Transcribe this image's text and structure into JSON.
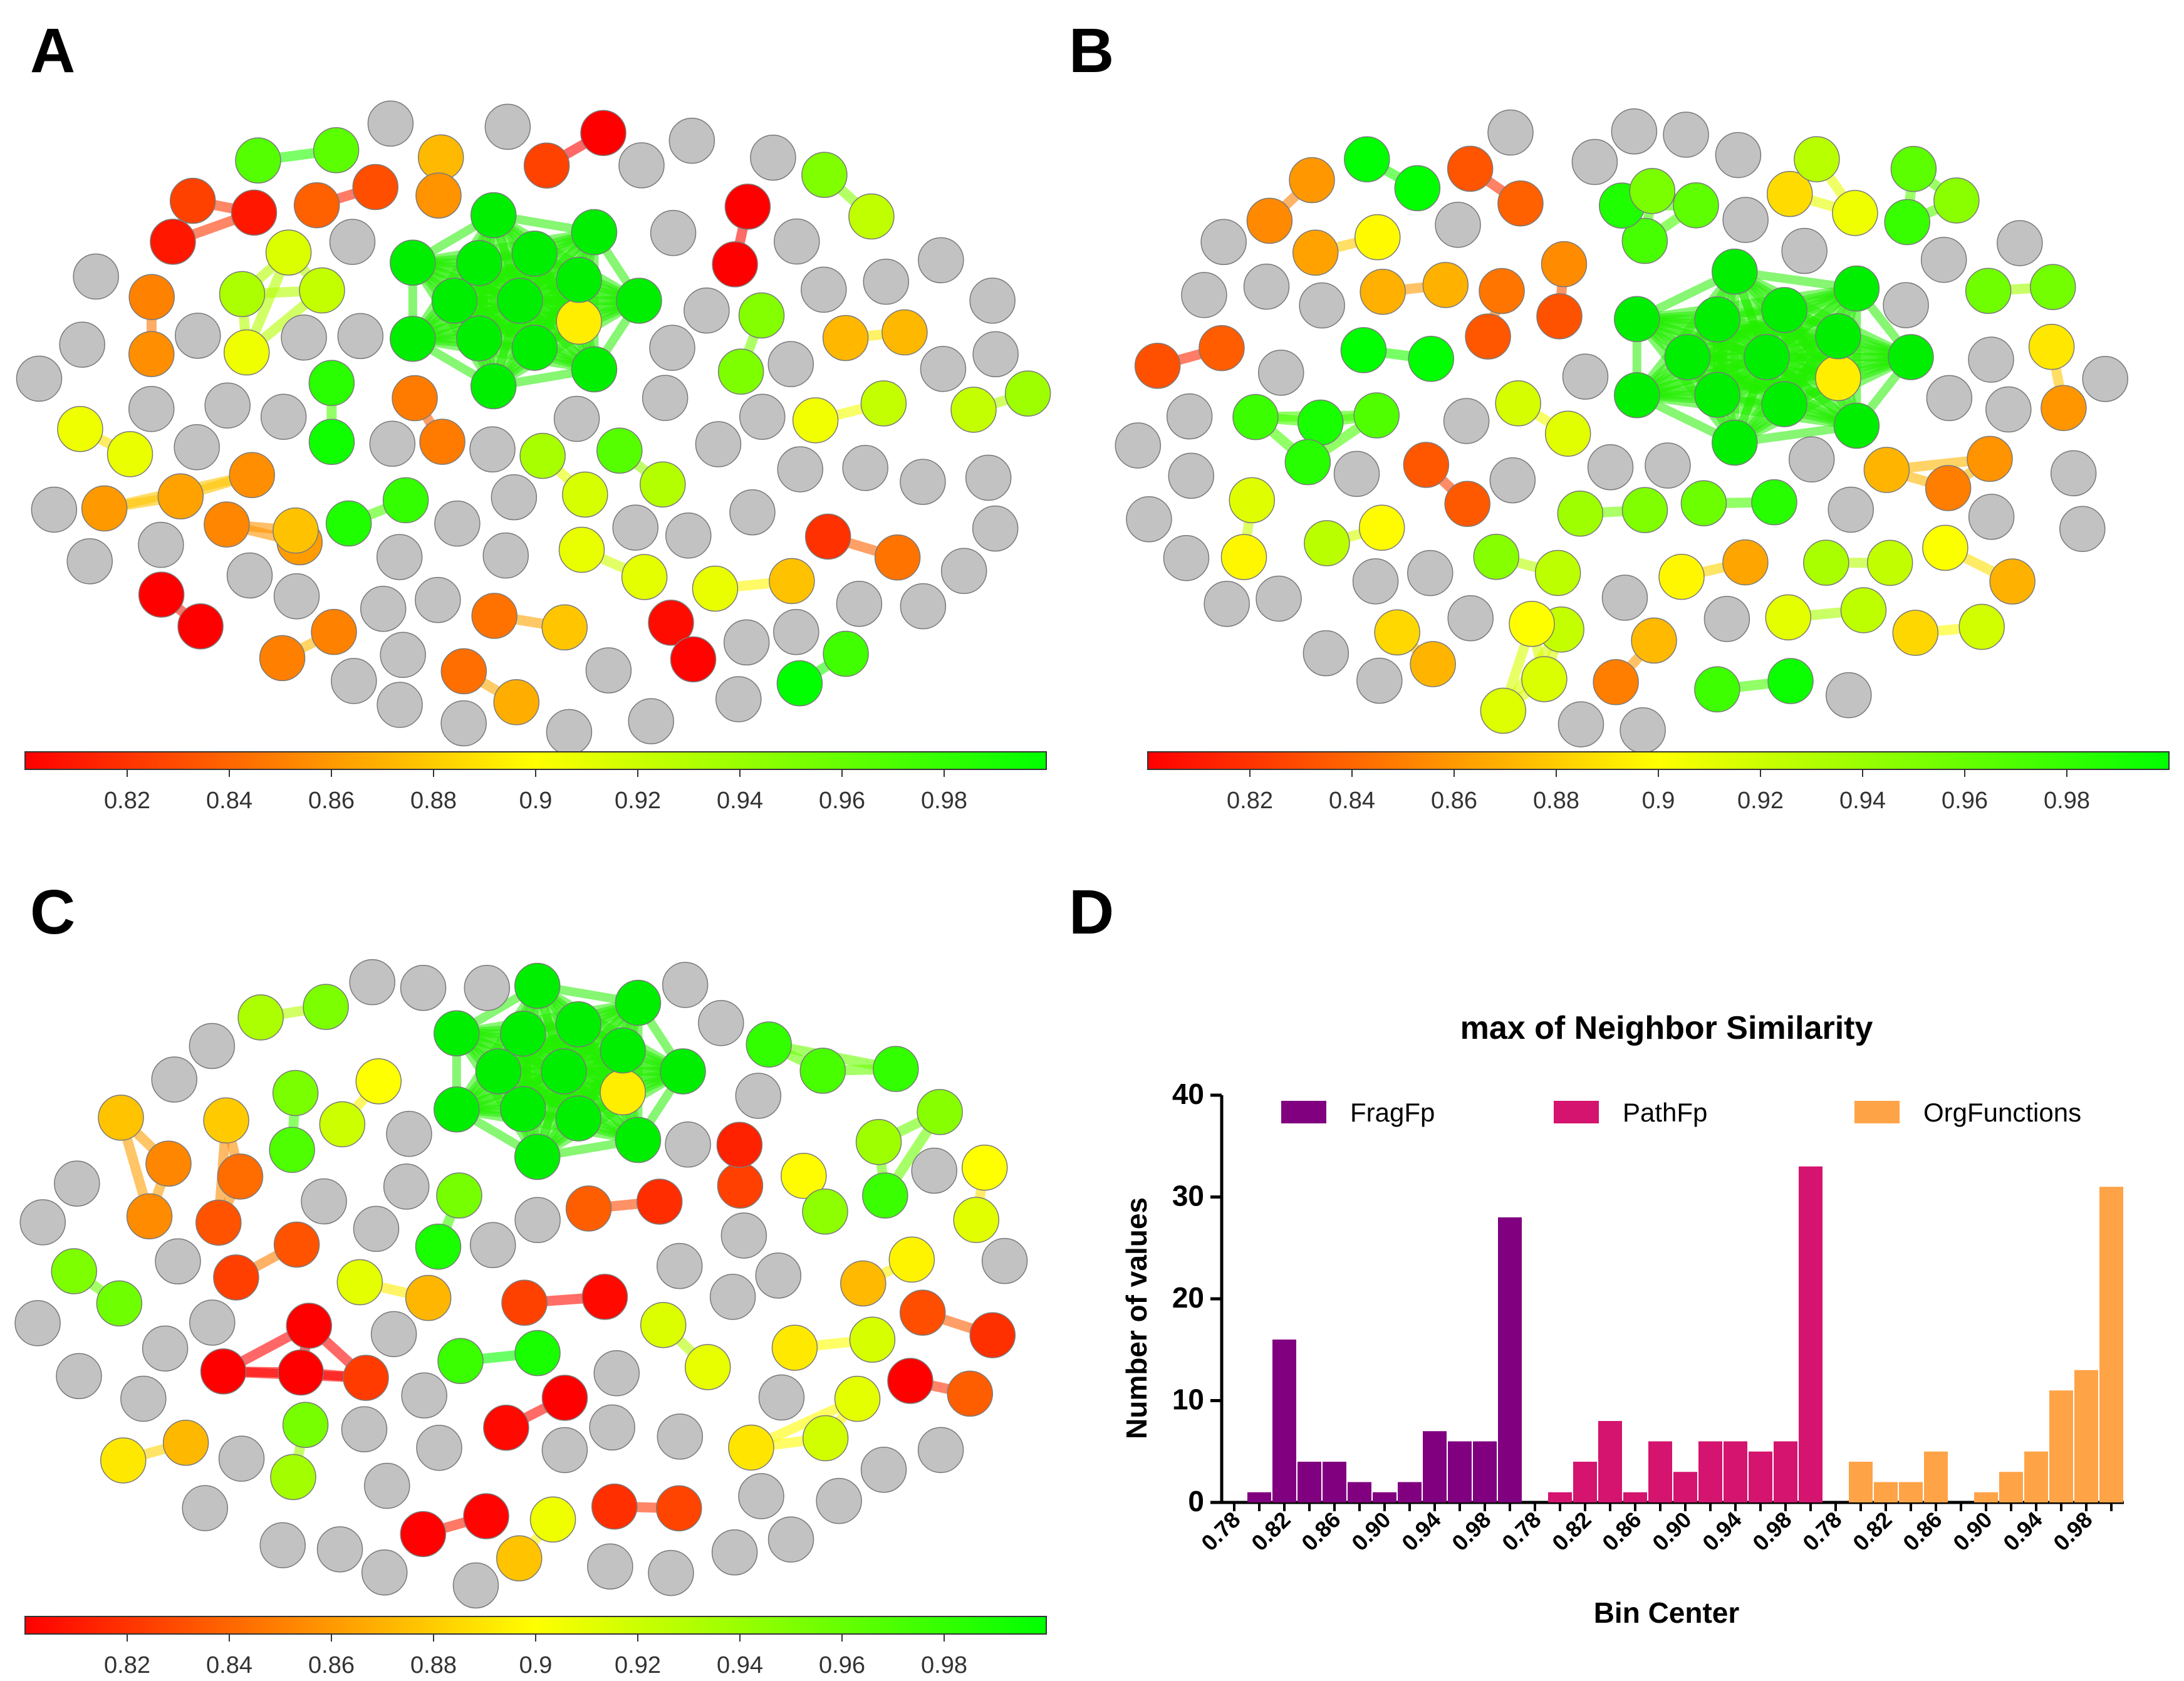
{
  "panels": [
    {
      "letter": "A",
      "colorbar_ticks": [
        "0.82",
        "0.84",
        "0.86",
        "0.88",
        "0.9",
        "0.92",
        "0.94",
        "0.96",
        "0.98"
      ]
    },
    {
      "letter": "B",
      "colorbar_ticks": [
        "0.82",
        "0.84",
        "0.86",
        "0.88",
        "0.9",
        "0.92",
        "0.94",
        "0.96",
        "0.98"
      ]
    },
    {
      "letter": "C",
      "colorbar_ticks": [
        "0.82",
        "0.84",
        "0.86",
        "0.88",
        "0.9",
        "0.92",
        "0.94",
        "0.96",
        "0.98"
      ]
    },
    {
      "letter": "D"
    }
  ],
  "colors": {
    "node_gray": "#c2c2c2",
    "low": "#ff0000",
    "mid": "#ffff00",
    "high": "#00ff00",
    "fragfp": "#800080",
    "pathfp": "#d4146e",
    "orgfunctions": "#ffa347"
  },
  "chart_data": [
    {
      "type": "network",
      "panel": "A",
      "colorbar": {
        "min": 0.8,
        "max": 1.0,
        "colors": [
          "#ff0000",
          "#ffff00",
          "#00ff00"
        ],
        "ticks": [
          0.82,
          0.84,
          0.86,
          0.88,
          0.9,
          0.92,
          0.94,
          0.96,
          0.98
        ]
      },
      "gray_nodes": 72,
      "colored_nodes": 78
    },
    {
      "type": "network",
      "panel": "B",
      "colorbar": {
        "min": 0.8,
        "max": 1.0,
        "colors": [
          "#ff0000",
          "#ffff00",
          "#00ff00"
        ],
        "ticks": [
          0.82,
          0.84,
          0.86,
          0.88,
          0.9,
          0.92,
          0.94,
          0.96,
          0.98
        ]
      },
      "gray_nodes": 74,
      "colored_nodes": 78
    },
    {
      "type": "network",
      "panel": "C",
      "colorbar": {
        "min": 0.8,
        "max": 1.0,
        "colors": [
          "#ff0000",
          "#ffff00",
          "#00ff00"
        ],
        "ticks": [
          0.82,
          0.84,
          0.86,
          0.88,
          0.9,
          0.92,
          0.94,
          0.96,
          0.98
        ]
      },
      "gray_nodes": 70,
      "colored_nodes": 80
    },
    {
      "type": "bar",
      "panel": "D",
      "title": "max of Neighbor Similarity",
      "xlabel": "Bin Center",
      "ylabel": "Number of values",
      "ylim": [
        0,
        40
      ],
      "yticks": [
        "0",
        "10",
        "20",
        "30",
        "40"
      ],
      "xtick_labels": [
        "0.78",
        "0.82",
        "0.86",
        "0.90",
        "0.94",
        "0.98"
      ],
      "series": [
        {
          "name": "FragFp",
          "color": "#800080",
          "bins": [
            0.78,
            0.8,
            0.82,
            0.84,
            0.86,
            0.88,
            0.9,
            0.92,
            0.94,
            0.96,
            0.98,
            1.0
          ],
          "values": [
            0,
            1,
            16,
            4,
            4,
            2,
            1,
            2,
            7,
            6,
            6,
            28
          ]
        },
        {
          "name": "PathFp",
          "color": "#d4146e",
          "bins": [
            0.78,
            0.8,
            0.82,
            0.84,
            0.86,
            0.88,
            0.9,
            0.92,
            0.94,
            0.96,
            0.98,
            1.0
          ],
          "values": [
            0,
            1,
            4,
            8,
            1,
            6,
            3,
            6,
            6,
            5,
            6,
            33
          ]
        },
        {
          "name": "OrgFunctions",
          "color": "#ffa347",
          "bins": [
            0.78,
            0.8,
            0.82,
            0.84,
            0.86,
            0.88,
            0.9,
            0.92,
            0.94,
            0.96,
            0.98,
            1.0
          ],
          "values": [
            0,
            4,
            2,
            2,
            5,
            0,
            1,
            3,
            5,
            11,
            13,
            31
          ]
        }
      ]
    }
  ]
}
